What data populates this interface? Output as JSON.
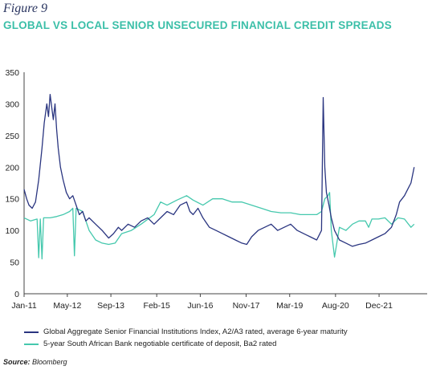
{
  "figure_label": "Figure 9",
  "title": "GLOBAL VS LOCAL SENIOR UNSECURED FINANCIAL CREDIT SPREADS",
  "source_label": "Source:",
  "source_text": "Bloomberg",
  "colors": {
    "title": "#3bbfa8",
    "series1": "#2a3580",
    "series2": "#45c8ad",
    "axis": "#444444"
  },
  "chart_data": {
    "type": "line",
    "title": "GLOBAL VS LOCAL SENIOR UNSECURED FINANCIAL CREDIT SPREADS",
    "xlabel": "",
    "ylabel": "",
    "ylim": [
      0,
      350
    ],
    "xlim": [
      2011.0,
      2023.4
    ],
    "yticks": [
      0,
      50,
      100,
      150,
      200,
      250,
      300,
      350
    ],
    "xticks": [
      {
        "label": "Jan-11",
        "x": 2011.0
      },
      {
        "label": "May-12",
        "x": 2012.33
      },
      {
        "label": "Sep-13",
        "x": 2013.67
      },
      {
        "label": "Feb-15",
        "x": 2015.08
      },
      {
        "label": "Jun-16",
        "x": 2016.42
      },
      {
        "label": "Nov-17",
        "x": 2017.83
      },
      {
        "label": "Mar-19",
        "x": 2019.17
      },
      {
        "label": "Aug-20",
        "x": 2020.58
      },
      {
        "label": "Dec-21",
        "x": 2021.92
      }
    ],
    "legend_position": "bottom",
    "grid": false,
    "series": [
      {
        "name": "Global Aggregate Senior Financial Institutions Index, A2/A3 rated, average 6-year maturity",
        "color": "#2a3580",
        "x": [
          2011.0,
          2011.08,
          2011.15,
          2011.25,
          2011.35,
          2011.45,
          2011.55,
          2011.62,
          2011.7,
          2011.75,
          2011.8,
          2011.85,
          2011.9,
          2011.95,
          2012.0,
          2012.05,
          2012.12,
          2012.2,
          2012.3,
          2012.4,
          2012.5,
          2012.6,
          2012.7,
          2012.8,
          2012.9,
          2013.0,
          2013.2,
          2013.4,
          2013.6,
          2013.75,
          2013.9,
          2014.0,
          2014.2,
          2014.4,
          2014.6,
          2014.8,
          2015.0,
          2015.2,
          2015.4,
          2015.6,
          2015.8,
          2016.0,
          2016.1,
          2016.2,
          2016.35,
          2016.5,
          2016.7,
          2016.9,
          2017.1,
          2017.3,
          2017.5,
          2017.7,
          2017.85,
          2018.0,
          2018.2,
          2018.4,
          2018.6,
          2018.8,
          2019.0,
          2019.2,
          2019.4,
          2019.6,
          2019.8,
          2020.0,
          2020.1,
          2020.15,
          2020.2,
          2020.25,
          2020.3,
          2020.38,
          2020.45,
          2020.55,
          2020.7,
          2020.9,
          2021.1,
          2021.3,
          2021.5,
          2021.7,
          2021.9,
          2022.1,
          2022.3,
          2022.45,
          2022.55,
          2022.7,
          2022.8,
          2022.9,
          2023.0
        ],
        "values": [
          165,
          150,
          140,
          135,
          145,
          180,
          230,
          270,
          300,
          280,
          315,
          295,
          275,
          300,
          260,
          230,
          200,
          180,
          160,
          150,
          155,
          140,
          125,
          130,
          115,
          120,
          110,
          100,
          88,
          95,
          105,
          100,
          110,
          105,
          115,
          120,
          110,
          120,
          130,
          125,
          140,
          145,
          130,
          125,
          135,
          120,
          105,
          100,
          95,
          90,
          85,
          80,
          78,
          90,
          100,
          105,
          110,
          100,
          105,
          110,
          100,
          95,
          90,
          85,
          95,
          100,
          310,
          200,
          160,
          140,
          120,
          100,
          85,
          80,
          75,
          78,
          80,
          85,
          90,
          95,
          105,
          125,
          145,
          155,
          165,
          175,
          200
        ]
      },
      {
        "name": "5-year South African Bank negotiable certificate of deposit, Ba2 rated",
        "color": "#45c8ad",
        "x": [
          2011.0,
          2011.2,
          2011.4,
          2011.45,
          2011.5,
          2011.55,
          2011.6,
          2011.8,
          2012.0,
          2012.2,
          2012.4,
          2012.5,
          2012.55,
          2012.6,
          2012.8,
          2013.0,
          2013.2,
          2013.4,
          2013.6,
          2013.8,
          2014.0,
          2014.3,
          2014.6,
          2015.0,
          2015.2,
          2015.4,
          2015.7,
          2016.0,
          2016.2,
          2016.5,
          2016.8,
          2017.1,
          2017.4,
          2017.7,
          2018.0,
          2018.3,
          2018.6,
          2018.9,
          2019.2,
          2019.5,
          2019.8,
          2020.0,
          2020.15,
          2020.25,
          2020.35,
          2020.4,
          2020.45,
          2020.55,
          2020.7,
          2020.9,
          2021.1,
          2021.3,
          2021.5,
          2021.6,
          2021.7,
          2021.9,
          2022.1,
          2022.3,
          2022.5,
          2022.7,
          2022.9,
          2023.0
        ],
        "values": [
          120,
          115,
          118,
          57,
          118,
          55,
          120,
          120,
          122,
          125,
          130,
          135,
          60,
          135,
          130,
          100,
          85,
          80,
          78,
          80,
          95,
          100,
          110,
          125,
          145,
          140,
          148,
          155,
          148,
          140,
          150,
          150,
          145,
          145,
          140,
          135,
          130,
          128,
          128,
          125,
          125,
          125,
          130,
          150,
          155,
          160,
          100,
          58,
          105,
          100,
          110,
          115,
          115,
          105,
          118,
          118,
          120,
          110,
          120,
          118,
          105,
          110
        ]
      }
    ]
  }
}
